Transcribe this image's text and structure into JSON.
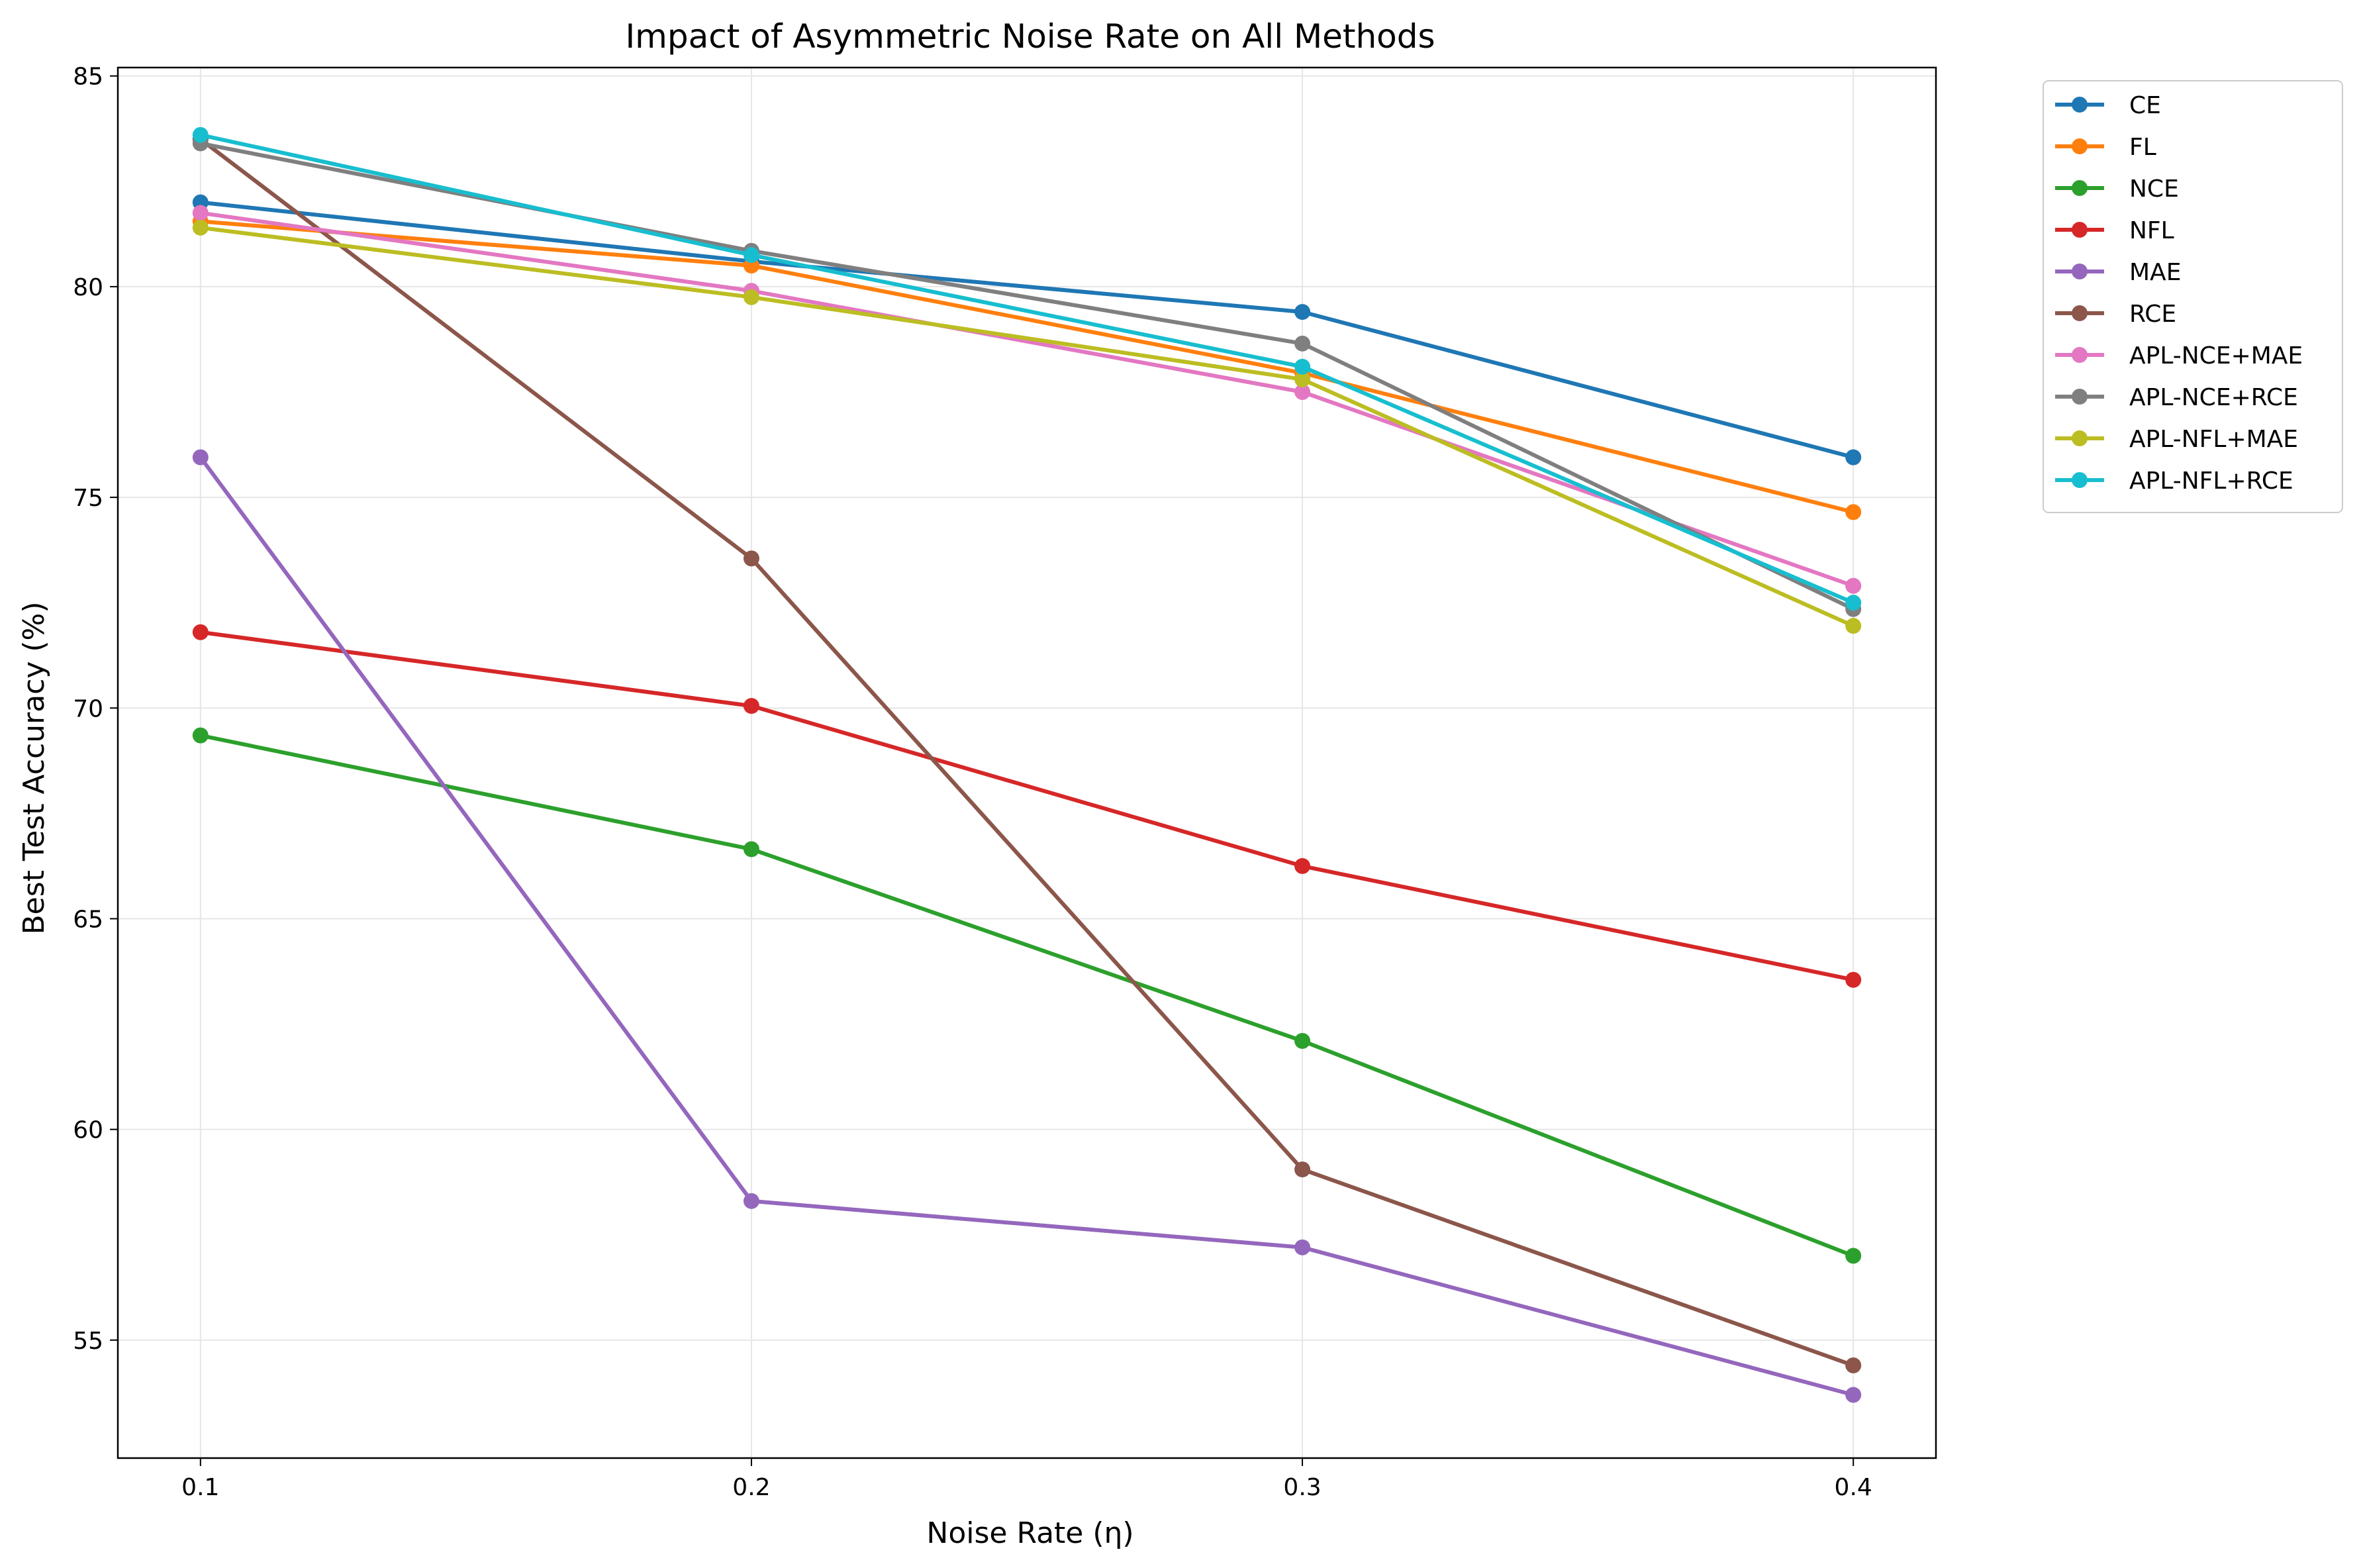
{
  "chart_data": {
    "type": "line",
    "title": "Impact of Asymmetric Noise Rate on All Methods",
    "xlabel": "Noise Rate (η)",
    "ylabel": "Best Test Accuracy (%)",
    "x": [
      0.1,
      0.2,
      0.3,
      0.4
    ],
    "x_tick_labels": [
      "0.1",
      "0.2",
      "0.3",
      "0.4"
    ],
    "xlim": [
      0.085,
      0.415
    ],
    "y_ticks": [
      55,
      60,
      65,
      70,
      75,
      80,
      85
    ],
    "y_tick_labels": [
      "55",
      "60",
      "65",
      "70",
      "75",
      "80",
      "85"
    ],
    "ylim": [
      52.2,
      85.2
    ],
    "grid": true,
    "legend_position": "outside right, top",
    "series": [
      {
        "name": "CE",
        "color": "#1f77b4",
        "values": [
          82.0,
          80.6,
          79.4,
          75.95
        ]
      },
      {
        "name": "FL",
        "color": "#ff7f0e",
        "values": [
          81.55,
          80.5,
          77.95,
          74.65
        ]
      },
      {
        "name": "NCE",
        "color": "#2ca02c",
        "values": [
          69.35,
          66.65,
          62.1,
          57.0
        ]
      },
      {
        "name": "NFL",
        "color": "#d62728",
        "values": [
          71.8,
          70.05,
          66.25,
          63.55
        ]
      },
      {
        "name": "MAE",
        "color": "#9467bd",
        "values": [
          75.95,
          58.3,
          57.2,
          53.7
        ]
      },
      {
        "name": "RCE",
        "color": "#8c564b",
        "values": [
          83.5,
          73.55,
          59.05,
          54.4
        ]
      },
      {
        "name": "APL-NCE+MAE",
        "color": "#e377c2",
        "values": [
          81.75,
          79.9,
          77.5,
          72.9
        ]
      },
      {
        "name": "APL-NCE+RCE",
        "color": "#7f7f7f",
        "values": [
          83.4,
          80.85,
          78.65,
          72.35
        ]
      },
      {
        "name": "APL-NFL+MAE",
        "color": "#bcbd22",
        "values": [
          81.4,
          79.75,
          77.8,
          71.95
        ]
      },
      {
        "name": "APL-NFL+RCE",
        "color": "#17becf",
        "values": [
          83.6,
          80.75,
          78.1,
          72.5
        ]
      }
    ]
  }
}
